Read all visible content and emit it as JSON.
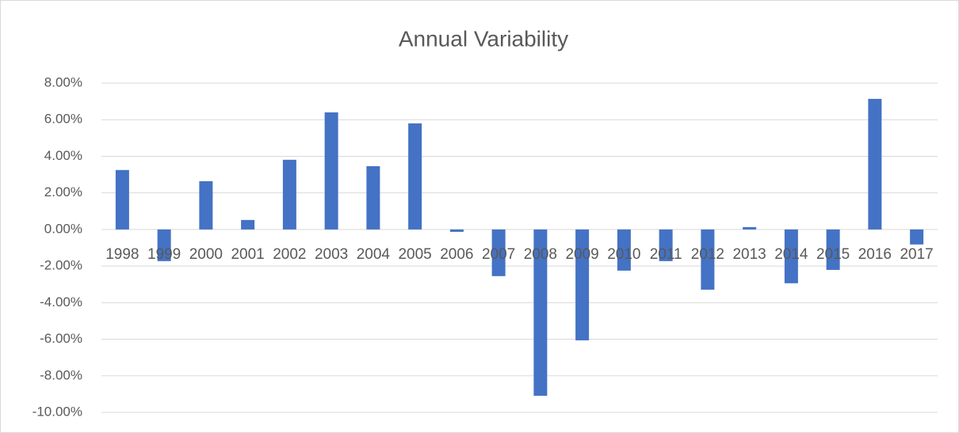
{
  "chart_data": {
    "type": "bar",
    "title": "Annual Variability",
    "categories": [
      "1998",
      "1999",
      "2000",
      "2001",
      "2002",
      "2003",
      "2004",
      "2005",
      "2006",
      "2007",
      "2008",
      "2009",
      "2010",
      "2011",
      "2012",
      "2013",
      "2014",
      "2015",
      "2016",
      "2017"
    ],
    "values": [
      3.25,
      -1.73,
      2.64,
      0.52,
      3.81,
      6.4,
      3.46,
      5.8,
      -0.13,
      -2.55,
      -9.09,
      -6.06,
      -2.25,
      -1.73,
      -3.29,
      0.13,
      -2.94,
      -2.21,
      7.14,
      -0.82
    ],
    "color": "#4472c4",
    "ylim": [
      -10,
      8
    ],
    "yticks": [
      {
        "value": -10,
        "label": "-10.00%"
      },
      {
        "value": -8,
        "label": "-8.00%"
      },
      {
        "value": -6,
        "label": "-6.00%"
      },
      {
        "value": -4,
        "label": "-4.00%"
      },
      {
        "value": -2,
        "label": "-2.00%"
      },
      {
        "value": 0,
        "label": "0.00%"
      },
      {
        "value": 2,
        "label": "2.00%"
      },
      {
        "value": 4,
        "label": "4.00%"
      },
      {
        "value": 6,
        "label": "6.00%"
      },
      {
        "value": 8,
        "label": "8.00%"
      }
    ],
    "grid": true
  }
}
